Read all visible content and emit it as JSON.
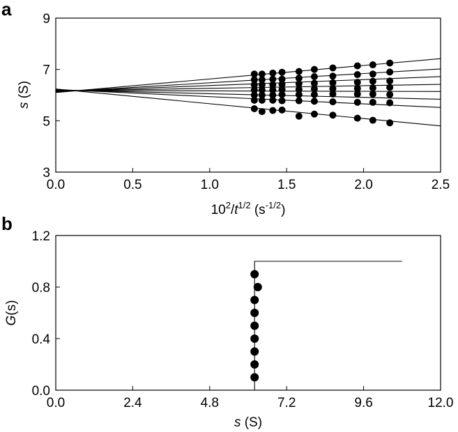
{
  "chart_data": [
    {
      "panel": "a",
      "type": "scatter",
      "xlabel": {
        "base": "10",
        "sup1": "2",
        "slash": "/",
        "var": "t",
        "sup2": "1/2",
        "unit_open": " (s",
        "sup3": "-1/2",
        "unit_close": ")"
      },
      "ylabel": {
        "var": "s",
        "unit": " (S)"
      },
      "xlim": [
        0,
        2.5
      ],
      "ylim": [
        3,
        9
      ],
      "xticks": [
        "0.0",
        "0.5",
        "1.0",
        "1.5",
        "2.0",
        "2.5"
      ],
      "yticks": [
        "3",
        "5",
        "7",
        "9"
      ],
      "x": [
        1.29,
        1.34,
        1.41,
        1.47,
        1.58,
        1.68,
        1.8,
        1.96,
        2.06,
        2.17
      ],
      "series": [
        {
          "y": [
            6.82,
            6.82,
            6.86,
            6.89,
            6.92,
            7.0,
            7.06,
            7.14,
            7.18,
            7.25
          ]
        },
        {
          "y": [
            6.6,
            6.6,
            6.62,
            6.62,
            6.66,
            6.72,
            6.74,
            6.8,
            6.82,
            6.9
          ]
        },
        {
          "y": [
            6.4,
            6.4,
            6.4,
            6.42,
            6.44,
            6.46,
            6.48,
            6.5,
            6.54,
            6.55
          ]
        },
        {
          "y": [
            6.2,
            6.2,
            6.2,
            6.22,
            6.22,
            6.24,
            6.25,
            6.26,
            6.28,
            6.3
          ]
        },
        {
          "y": [
            6.0,
            6.0,
            6.0,
            6.02,
            6.02,
            6.02,
            6.04,
            6.04,
            6.04,
            6.02
          ]
        },
        {
          "y": [
            5.8,
            5.8,
            5.8,
            5.78,
            5.78,
            5.76,
            5.74,
            5.72,
            5.72,
            5.7
          ]
        },
        {
          "y": [
            5.47,
            5.36,
            5.4,
            5.42,
            5.18,
            5.26,
            5.22,
            5.1,
            5.02,
            4.92
          ]
        }
      ],
      "fit_lines": [
        {
          "y0": 6.1,
          "y25": 7.42
        },
        {
          "y0": 6.12,
          "y25": 7.02
        },
        {
          "y0": 6.14,
          "y25": 6.72
        },
        {
          "y0": 6.16,
          "y25": 6.42
        },
        {
          "y0": 6.18,
          "y25": 6.14
        },
        {
          "y0": 6.2,
          "y25": 5.84
        },
        {
          "y0": 6.22,
          "y25": 5.52
        },
        {
          "y0": 6.24,
          "y25": 4.8
        }
      ]
    },
    {
      "panel": "b",
      "type": "scatter",
      "xlabel": {
        "var": "s",
        "unit": " (S)"
      },
      "ylabel": {
        "var": "G",
        "rest": "(s)"
      },
      "xlim": [
        0,
        12
      ],
      "ylim": [
        0,
        1.2
      ],
      "xticks": [
        "0.0",
        "2.4",
        "4.8",
        "7.2",
        "9.6",
        "12.0"
      ],
      "yticks": [
        "0.0",
        "0.4",
        "0.8",
        "1.2"
      ],
      "points": [
        {
          "x": 6.2,
          "y": 0.1
        },
        {
          "x": 6.2,
          "y": 0.2
        },
        {
          "x": 6.2,
          "y": 0.3
        },
        {
          "x": 6.2,
          "y": 0.4
        },
        {
          "x": 6.2,
          "y": 0.5
        },
        {
          "x": 6.2,
          "y": 0.6
        },
        {
          "x": 6.2,
          "y": 0.7
        },
        {
          "x": 6.3,
          "y": 0.8
        },
        {
          "x": 6.2,
          "y": 0.9
        }
      ],
      "step": [
        {
          "x": 6.2,
          "y": 0.0
        },
        {
          "x": 6.2,
          "y": 1.0
        },
        {
          "x": 10.8,
          "y": 1.0
        }
      ]
    }
  ],
  "panel_labels": [
    "a",
    "b"
  ]
}
